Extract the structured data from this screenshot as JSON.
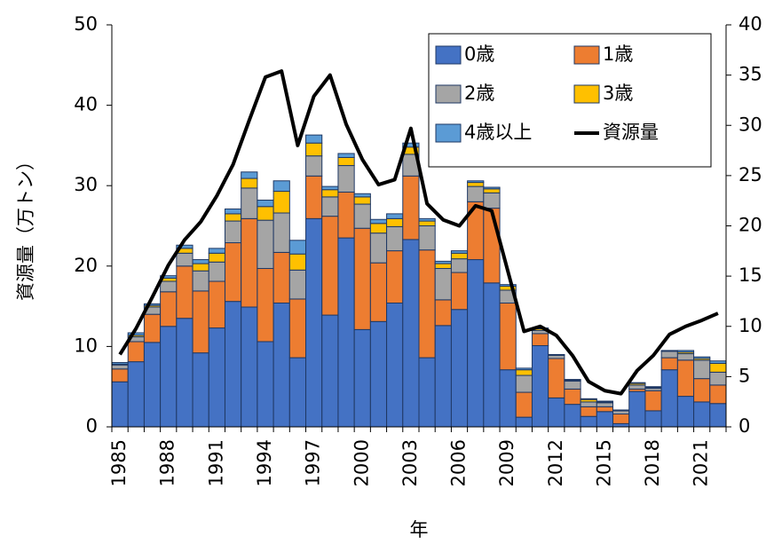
{
  "chart_data": {
    "type": "bar",
    "x_label": "年",
    "y_label": "資源量（万トン）",
    "categories": [
      "1985",
      null,
      null,
      "1988",
      null,
      null,
      "1991",
      null,
      null,
      "1994",
      null,
      null,
      "1997",
      null,
      null,
      "2000",
      null,
      null,
      "2003",
      null,
      null,
      "2006",
      null,
      null,
      "2009",
      null,
      null,
      "2012",
      null,
      null,
      "2015",
      null,
      null,
      "2018",
      null,
      null,
      "2021",
      null
    ],
    "series": [
      {
        "name": "0歳",
        "color": "#4472c4",
        "values": [
          5.6,
          8.1,
          10.5,
          12.5,
          13.5,
          9.2,
          12.3,
          15.6,
          14.9,
          10.6,
          15.4,
          8.6,
          25.9,
          13.9,
          23.5,
          12.1,
          13.1,
          15.4,
          23.3,
          8.6,
          12.6,
          14.6,
          20.8,
          17.9,
          7.1,
          1.2,
          10.1,
          3.6,
          2.8,
          1.3,
          1.9,
          0.4,
          4.4,
          2.0,
          7.1,
          3.8,
          3.1,
          2.9
        ]
      },
      {
        "name": "1歳",
        "color": "#ed7d31",
        "values": [
          1.6,
          2.5,
          3.5,
          4.3,
          6.5,
          7.7,
          5.8,
          7.3,
          11.0,
          9.1,
          6.3,
          7.3,
          5.3,
          12.3,
          5.7,
          12.6,
          7.3,
          6.5,
          7.9,
          13.4,
          3.2,
          4.6,
          7.2,
          9.3,
          8.3,
          3.1,
          1.5,
          4.9,
          1.9,
          1.2,
          0.6,
          1.2,
          0.3,
          2.5,
          1.5,
          4.5,
          2.9,
          2.3
        ]
      },
      {
        "name": "2歳",
        "color": "#a5a5a5",
        "values": [
          0.5,
          0.6,
          0.9,
          1.3,
          1.6,
          2.5,
          2.4,
          2.7,
          3.8,
          6.0,
          4.9,
          3.6,
          2.5,
          2.4,
          3.3,
          3.0,
          3.7,
          3.0,
          2.7,
          3.0,
          3.9,
          1.7,
          1.9,
          1.9,
          1.6,
          2.1,
          0.4,
          0.4,
          1.0,
          0.6,
          0.5,
          0.4,
          0.5,
          0.3,
          0.8,
          0.8,
          2.3,
          1.6
        ]
      },
      {
        "name": "3歳",
        "color": "#ffc000",
        "values": [
          0.1,
          0.2,
          0.2,
          0.4,
          0.6,
          0.9,
          1.1,
          0.9,
          1.2,
          1.7,
          2.7,
          2.0,
          1.6,
          0.9,
          1.0,
          0.9,
          1.2,
          1.0,
          0.9,
          0.6,
          0.6,
          0.7,
          0.5,
          0.5,
          0.5,
          0.7,
          0.2,
          0.05,
          0.1,
          0.3,
          0.1,
          0.05,
          0.2,
          0.1,
          0.05,
          0.2,
          0.2,
          1.1
        ]
      },
      {
        "name": "4歳以上",
        "color": "#5b9bd5",
        "values": [
          0.2,
          0.3,
          0.2,
          0.3,
          0.4,
          0.5,
          0.6,
          0.6,
          0.8,
          0.8,
          1.3,
          1.7,
          1.0,
          0.4,
          0.5,
          0.4,
          0.5,
          0.6,
          0.5,
          0.3,
          0.3,
          0.3,
          0.2,
          0.2,
          0.2,
          0.2,
          0.1,
          0.05,
          0.1,
          0.1,
          0.1,
          0.05,
          0.1,
          0.1,
          0.05,
          0.2,
          0.2,
          0.3
        ]
      },
      {
        "name": "資源量",
        "type": "line",
        "axis": "y2",
        "color": "#000000",
        "values": [
          7.2,
          9.8,
          12.9,
          16.1,
          18.6,
          20.4,
          23.0,
          26.1,
          30.5,
          34.8,
          35.4,
          28.0,
          32.9,
          35.0,
          30.1,
          26.6,
          24.1,
          24.6,
          29.7,
          22.2,
          20.6,
          20.0,
          22.0,
          21.5,
          15.5,
          9.5,
          10.0,
          9.1,
          7.1,
          4.5,
          3.6,
          3.3,
          5.6,
          7.1,
          9.2,
          10.0,
          10.6,
          11.3
        ]
      }
    ],
    "ylim": [
      0,
      50
    ],
    "yticks": [
      0,
      10,
      20,
      30,
      40,
      50
    ],
    "y2lim": [
      0,
      40
    ],
    "y2ticks": [
      0,
      5,
      10,
      15,
      20,
      25,
      30,
      35,
      40
    ],
    "legend": "upper right"
  }
}
